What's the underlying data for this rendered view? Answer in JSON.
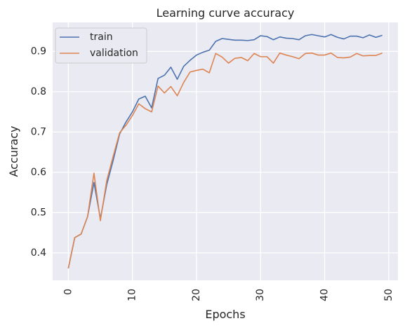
{
  "chart_data": {
    "type": "line",
    "title": "Learning curve accuracy",
    "xlabel": "Epochs",
    "ylabel": "Accuracy",
    "xlim": [
      -2.45,
      51.45
    ],
    "ylim": [
      0.332,
      0.972
    ],
    "xticks": [
      0,
      10,
      20,
      30,
      40,
      50
    ],
    "yticks": [
      0.4,
      0.5,
      0.6,
      0.7,
      0.8,
      0.9
    ],
    "grid": true,
    "legend_position": "top-left",
    "x": [
      0,
      1,
      2,
      3,
      4,
      5,
      6,
      7,
      8,
      9,
      10,
      11,
      12,
      13,
      14,
      15,
      16,
      17,
      18,
      19,
      20,
      21,
      22,
      23,
      24,
      25,
      26,
      27,
      28,
      29,
      30,
      31,
      32,
      33,
      34,
      35,
      36,
      37,
      38,
      39,
      40,
      41,
      42,
      43,
      44,
      45,
      46,
      47,
      48,
      49
    ],
    "series": [
      {
        "name": "train",
        "color": "#4c72b0",
        "values": [
          0.362,
          0.438,
          0.447,
          0.49,
          0.575,
          0.485,
          0.57,
          0.63,
          0.695,
          0.725,
          0.75,
          0.782,
          0.789,
          0.76,
          0.833,
          0.841,
          0.861,
          0.831,
          0.863,
          0.878,
          0.891,
          0.898,
          0.903,
          0.925,
          0.932,
          0.93,
          0.928,
          0.928,
          0.927,
          0.929,
          0.939,
          0.937,
          0.929,
          0.936,
          0.933,
          0.932,
          0.929,
          0.939,
          0.942,
          0.939,
          0.936,
          0.942,
          0.935,
          0.931,
          0.938,
          0.938,
          0.934,
          0.941,
          0.935,
          0.94
        ]
      },
      {
        "name": "validation",
        "color": "#dd8452",
        "values": [
          0.362,
          0.438,
          0.447,
          0.49,
          0.598,
          0.48,
          0.58,
          0.64,
          0.698,
          0.717,
          0.741,
          0.77,
          0.758,
          0.75,
          0.814,
          0.797,
          0.813,
          0.79,
          0.823,
          0.849,
          0.853,
          0.856,
          0.847,
          0.895,
          0.886,
          0.871,
          0.883,
          0.885,
          0.877,
          0.895,
          0.887,
          0.887,
          0.871,
          0.896,
          0.891,
          0.887,
          0.882,
          0.895,
          0.896,
          0.891,
          0.891,
          0.896,
          0.885,
          0.884,
          0.886,
          0.895,
          0.889,
          0.89,
          0.89,
          0.896
        ]
      }
    ]
  }
}
